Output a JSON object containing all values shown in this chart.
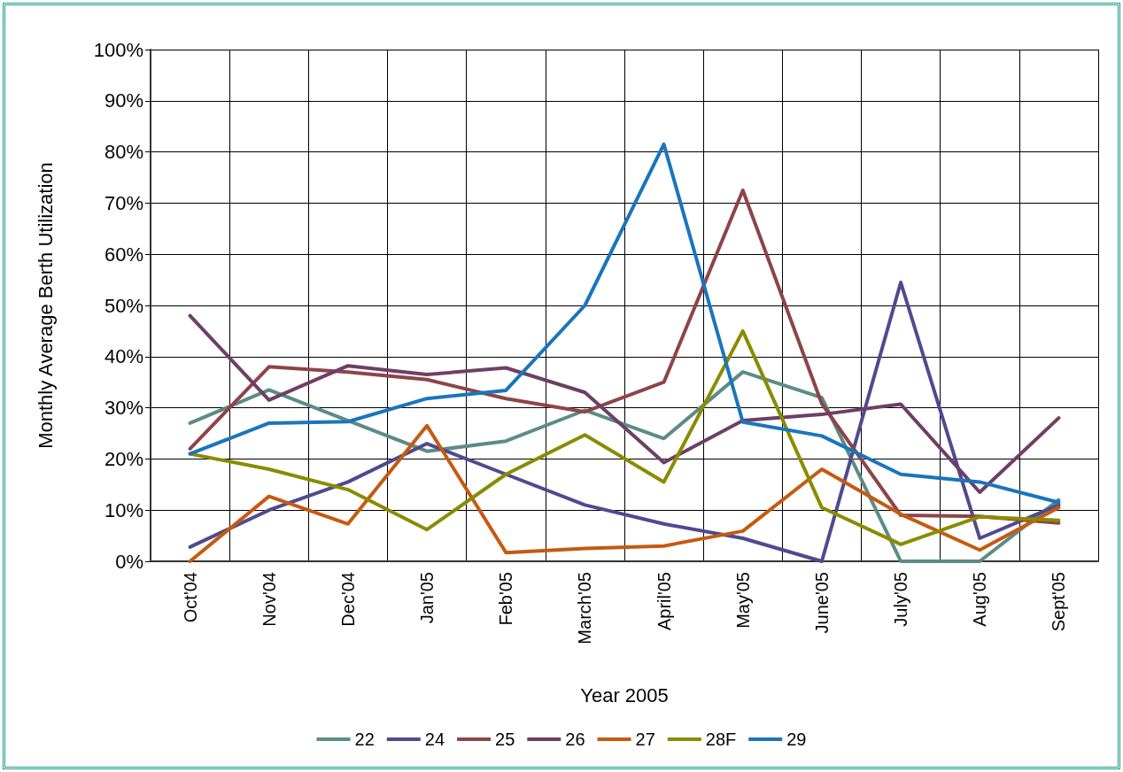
{
  "chart_data": {
    "type": "line",
    "xlabel": "Year 2005",
    "ylabel": "Monthly Average Berth Utilization",
    "categories": [
      "Oct'04",
      "Nov'04",
      "Dec'04",
      "Jan'05",
      "Feb'05",
      "March'05",
      "April'05",
      "May'05",
      "June'05",
      "July'05",
      "Aug'05",
      "Sept'05"
    ],
    "series": [
      {
        "name": "22",
        "color": "#5b8c85",
        "values": [
          27,
          33.5,
          27.5,
          21.5,
          23.5,
          29.5,
          24,
          37,
          32,
          0,
          0,
          12
        ]
      },
      {
        "name": "24",
        "color": "#4f4a8f",
        "values": [
          2.8,
          10,
          15.5,
          23,
          17,
          11,
          7.3,
          4.5,
          0,
          54.5,
          4.5,
          11
        ]
      },
      {
        "name": "25",
        "color": "#8e4448",
        "values": [
          22,
          38,
          37,
          35.5,
          31.8,
          29.2,
          35,
          72.5,
          30.8,
          9,
          8.8,
          7.5
        ]
      },
      {
        "name": "26",
        "color": "#6e3f66",
        "values": [
          48,
          31.5,
          38.2,
          36.5,
          37.8,
          33,
          19.3,
          27.5,
          28.7,
          30.7,
          13.5,
          28
        ]
      },
      {
        "name": "27",
        "color": "#c55a11",
        "values": [
          0,
          12.7,
          7.3,
          26.5,
          1.7,
          2.5,
          3,
          5.9,
          18,
          9.2,
          2.2,
          10.5
        ]
      },
      {
        "name": "28F",
        "color": "#8b8b00",
        "values": [
          21,
          18,
          14,
          6.2,
          17,
          24.7,
          15.5,
          45,
          10.5,
          3.3,
          8.7,
          8
        ]
      },
      {
        "name": "29",
        "color": "#1a75bc",
        "values": [
          21,
          27,
          27.3,
          31.8,
          33.4,
          50,
          81.5,
          27.2,
          24.5,
          17,
          15.5,
          11.5
        ]
      }
    ],
    "ylim": [
      0,
      100
    ],
    "yticks": [
      {
        "value": 0,
        "label": "0%"
      },
      {
        "value": 10,
        "label": "10%"
      },
      {
        "value": 20,
        "label": "20%"
      },
      {
        "value": 30,
        "label": "30%"
      },
      {
        "value": 40,
        "label": "40%"
      },
      {
        "value": 50,
        "label": "50%"
      },
      {
        "value": 60,
        "label": "60%"
      },
      {
        "value": 70,
        "label": "70%"
      },
      {
        "value": 80,
        "label": "80%"
      },
      {
        "value": 90,
        "label": "90%"
      },
      {
        "value": 100,
        "label": "100%"
      }
    ],
    "grid": true,
    "legend": "bottom",
    "marker": "none",
    "line_style": "solid"
  }
}
